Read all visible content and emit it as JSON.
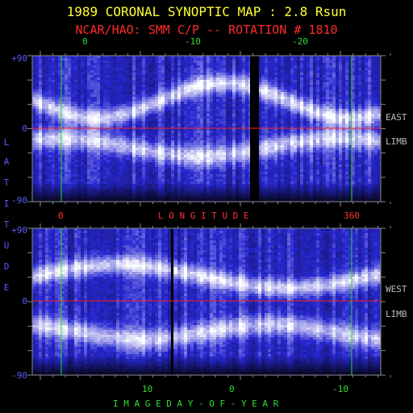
{
  "title": "1989 CORONAL SYNOPTIC MAP : 2.8 Rsun",
  "subtitle": "NCAR/HAO: SMM C/P -- ROTATION # 1810",
  "y_axis_label_letters": [
    "L",
    "A",
    "T",
    "I",
    "T",
    "U",
    "D",
    "E"
  ],
  "chart_data": [
    {
      "type": "heatmap",
      "panel": "east-limb",
      "side_label": [
        "EAST",
        "LIMB"
      ],
      "ylabel": "LATITUDE",
      "ylim": [
        -90,
        90
      ],
      "y_ticks": [
        "+90",
        "0",
        "-90"
      ],
      "top_x_ticks": [
        "0",
        "-10",
        "-20"
      ],
      "bottom_x_ticks": [
        "0",
        "360"
      ],
      "bottom_xlabel": "L O N G I T U D E",
      "xlim": [
        0,
        360
      ],
      "reference_lines": {
        "equator_latitude": 0,
        "green_longitudes": [
          0,
          360
        ]
      },
      "colors": {
        "low": "#000010",
        "mid": "#2a2ad0",
        "high": "#ffffff",
        "equator": "#ff2020",
        "marker": "#20e020"
      }
    },
    {
      "type": "heatmap",
      "panel": "west-limb",
      "side_label": [
        "WEST",
        "LIMB"
      ],
      "ylabel": "LATITUDE",
      "ylim": [
        -90,
        90
      ],
      "y_ticks": [
        "+90",
        "0",
        "-90"
      ],
      "bottom_x_ticks": [
        "10",
        "0",
        "-10"
      ],
      "xlabel": "I M A G E   D A Y - O F - Y E A R",
      "reference_lines": {
        "equator_latitude": 0
      },
      "colors": {
        "low": "#000010",
        "mid": "#2a2ad0",
        "high": "#ffffff",
        "equator": "#ff2020",
        "marker": "#20e020"
      }
    }
  ]
}
